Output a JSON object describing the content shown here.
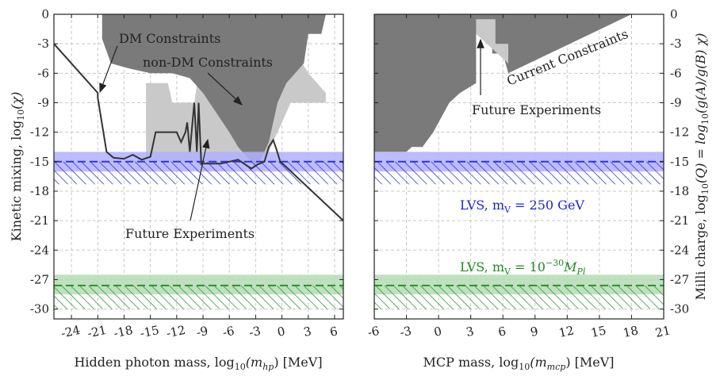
{
  "colors": {
    "current_constraints": "#7a7a7a",
    "future": "#c9c9c9",
    "lvs_blue": "#3333dd",
    "lvs_blue_band": "#b0b0ff",
    "lvs_green": "#2a922a",
    "lvs_green_band": "#b4dcb4",
    "dm_line": "#333333"
  },
  "chart_data": [
    {
      "type": "area",
      "name": "hidden-photon",
      "xlabel": "Hidden photon mass, log",
      "xlabel_sub": "10",
      "xlabel_arg": "(m",
      "xlabel_arg_sub": "hp",
      "xlabel_unit": ") [MeV]",
      "ylabel": "Kinetic mixing, log",
      "ylabel_sub": "10",
      "ylabel_arg": "(χ)",
      "xlim": [
        -26,
        7
      ],
      "ylim": [
        -31,
        0
      ],
      "xticks": [
        -24,
        -21,
        -18,
        -15,
        -12,
        -9,
        -6,
        -3,
        0,
        3,
        6
      ],
      "yticks": [
        0,
        -3,
        -6,
        -9,
        -12,
        -15,
        -18,
        -21,
        -24,
        -27,
        -30
      ],
      "annotations": {
        "dm": "DM Constraints",
        "nondm": "non-DM Constraints",
        "future": "Future Experiments"
      },
      "future_region": [
        [
          -15.5,
          -15
        ],
        [
          -15.5,
          -7
        ],
        [
          -13,
          -7
        ],
        [
          -12.5,
          -9
        ],
        [
          -10,
          -9
        ],
        [
          -9.5,
          -6
        ],
        [
          -7,
          -4
        ],
        [
          -4,
          -2
        ],
        [
          -2,
          -1
        ],
        [
          0,
          -1
        ],
        [
          1,
          -3
        ],
        [
          3,
          -6
        ],
        [
          5,
          -8
        ],
        [
          5,
          -9
        ],
        [
          1,
          -9
        ],
        [
          0,
          -11
        ],
        [
          -1,
          -13
        ],
        [
          -2,
          -15
        ],
        [
          -15.5,
          -15
        ]
      ],
      "current_region": [
        [
          -20.5,
          0
        ],
        [
          5,
          0
        ],
        [
          4.5,
          -2
        ],
        [
          3,
          -2
        ],
        [
          2.5,
          -5
        ],
        [
          1.5,
          -6
        ],
        [
          0.5,
          -7
        ],
        [
          -0.5,
          -9
        ],
        [
          -1.5,
          -13
        ],
        [
          -2,
          -14
        ],
        [
          -2.5,
          -15
        ],
        [
          -3,
          -15.5
        ],
        [
          -4,
          -14.5
        ],
        [
          -5,
          -13.5
        ],
        [
          -6,
          -12
        ],
        [
          -7.5,
          -10
        ],
        [
          -9,
          -8
        ],
        [
          -10.5,
          -6.5
        ],
        [
          -12.5,
          -6
        ],
        [
          -15,
          -6
        ],
        [
          -17.5,
          -5.5
        ],
        [
          -19.5,
          -5
        ],
        [
          -20.5,
          -2.5
        ]
      ],
      "dm_line": [
        [
          -26,
          -3
        ],
        [
          -21,
          -8
        ],
        [
          -21,
          -8.5
        ],
        [
          -20,
          -14
        ],
        [
          -19.2,
          -14.6
        ],
        [
          -18,
          -14.7
        ],
        [
          -17,
          -14.3
        ],
        [
          -16,
          -14.8
        ],
        [
          -15,
          -14.5
        ],
        [
          -14.4,
          -12
        ],
        [
          -12,
          -12
        ],
        [
          -11.5,
          -13
        ],
        [
          -11,
          -12
        ],
        [
          -10.8,
          -11
        ],
        [
          -10.5,
          -14
        ],
        [
          -10,
          -9
        ],
        [
          -9.7,
          -14
        ],
        [
          -9.5,
          -9
        ],
        [
          -9.2,
          -15.2
        ],
        [
          -7,
          -15.2
        ],
        [
          -5,
          -14.8
        ],
        [
          -3.5,
          -15.7
        ],
        [
          -2.8,
          -15.3
        ],
        [
          -2,
          -15
        ],
        [
          -1.5,
          -13.5
        ],
        [
          -1,
          -12.8
        ],
        [
          -0.6,
          -13.8
        ],
        [
          -0.2,
          -15
        ],
        [
          0.2,
          -15.3
        ],
        [
          7,
          -21
        ]
      ],
      "lvs_bands": [
        {
          "color": "blue",
          "center": -15,
          "band": [
            -16,
            -14
          ],
          "hatch": [
            -17.3,
            -15
          ]
        },
        {
          "color": "green",
          "center": -27.6,
          "band": [
            -28.5,
            -26.5
          ],
          "hatch": [
            -30,
            -27.6
          ]
        }
      ]
    },
    {
      "type": "area",
      "name": "millicharged-particle",
      "xlabel": "MCP mass, log",
      "xlabel_sub": "10",
      "xlabel_arg": "(m",
      "xlabel_arg_sub": "mcp",
      "xlabel_unit": ") [MeV]",
      "ylabel": "Milli charge, log",
      "ylabel_sub": "10",
      "ylabel_arg": "(Q) = log",
      "ylabel_arg_sub": "10",
      "ylabel_tail": "(g(A)/g(B) χ)",
      "xlim": [
        -6,
        21
      ],
      "ylim": [
        -31,
        0
      ],
      "xticks": [
        -6,
        -3,
        0,
        3,
        6,
        9,
        12,
        15,
        18,
        21
      ],
      "yticks": [
        0,
        -3,
        -6,
        -9,
        -12,
        -15,
        -18,
        -21,
        -24,
        -27,
        -30
      ],
      "annotations": {
        "current": "Current Constraints",
        "future": "Future Experiments",
        "lvs_blue": "LVS, m",
        "lvs_blue_sub": "V",
        "lvs_blue_val": " = 250 GeV",
        "lvs_green": "LVS, m",
        "lvs_green_sub": "V",
        "lvs_green_val": " = 10",
        "lvs_green_exp": "−30",
        "lvs_green_tail": "M",
        "lvs_green_tail_sub": "Pl"
      },
      "current_region": [
        [
          -6,
          0
        ],
        [
          18,
          0
        ],
        [
          6.5,
          -6
        ],
        [
          6,
          -4
        ],
        [
          5,
          -4
        ],
        [
          5,
          -3
        ],
        [
          4.5,
          -1
        ],
        [
          3.5,
          -2
        ],
        [
          3.5,
          -7
        ],
        [
          2,
          -8
        ],
        [
          1,
          -9
        ],
        [
          -0.5,
          -12
        ],
        [
          -1.5,
          -13.5
        ],
        [
          -2.5,
          -13.5
        ],
        [
          -3,
          -14
        ],
        [
          -6,
          -14
        ]
      ],
      "future_region": [
        [
          3.5,
          -0.5
        ],
        [
          5.3,
          -0.5
        ],
        [
          5.3,
          -3
        ],
        [
          6.5,
          -3
        ],
        [
          6.5,
          -5
        ],
        [
          3.5,
          -2
        ]
      ],
      "lvs_bands": [
        {
          "color": "blue",
          "center": -15,
          "band": [
            -16,
            -14
          ],
          "hatch": [
            -17.3,
            -15
          ]
        },
        {
          "color": "green",
          "center": -27.6,
          "band": [
            -28.5,
            -26.5
          ],
          "hatch": [
            -30,
            -27.6
          ]
        }
      ]
    }
  ]
}
